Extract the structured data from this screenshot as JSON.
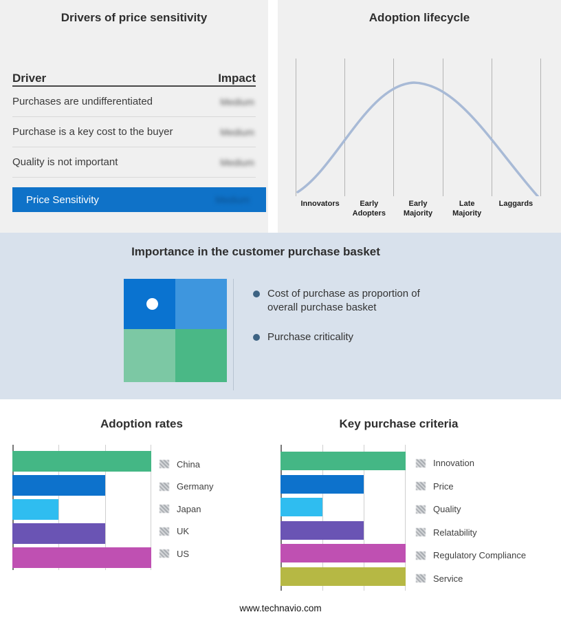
{
  "page": {
    "footer_url": "www.technavio.com",
    "band_bg": "#d8e1ec",
    "panel_bg": "#f0f0f0"
  },
  "drivers_panel": {
    "title": "Drivers of price sensitivity",
    "header": {
      "driver": "Driver",
      "impact": "Impact"
    },
    "rows": [
      {
        "driver": "Purchases are undifferentiated",
        "impact": "Medium",
        "impact_obscured": true
      },
      {
        "driver": "Purchase is a key cost to the buyer",
        "impact": "Medium",
        "impact_obscured": true
      },
      {
        "driver": "Quality is not important",
        "impact": "Medium",
        "impact_obscured": true
      }
    ],
    "highlight": {
      "label": "Price Sensitivity",
      "impact": "Medium",
      "impact_obscured": true,
      "bg": "#0f72c8",
      "text_color": "#ffffff"
    }
  },
  "lifecycle_panel": {
    "title": "Adoption lifecycle"
  },
  "basket_band": {
    "title": "Importance in the customer purchase basket",
    "bullets": [
      "Cost of purchase as proportion of overall purchase basket",
      "Purchase criticality"
    ],
    "bullet_color": "#3d6383",
    "quadrant": {
      "top_left": "#0a73d0",
      "top_right": "#3e96de",
      "bottom_left": "#7cc8a4",
      "bottom_right": "#4ab886",
      "dot_color": "#ffffff"
    }
  },
  "chart_data": [
    {
      "type": "line",
      "title": "Adoption lifecycle",
      "categories": [
        "Innovators",
        "Early Adopters",
        "Early Majority",
        "Late Majority",
        "Laggards"
      ],
      "shape": "bell adoption curve rising from Innovators, peaking at Early Majority, falling to Laggards",
      "color": "#a8bad6",
      "grid": "vertical category separator lines, no y-axis labels"
    },
    {
      "type": "bar",
      "orientation": "horizontal",
      "title": "Adoption rates",
      "categories": [
        "China",
        "Germany",
        "Japan",
        "UK",
        "US"
      ],
      "values": [
        3,
        2,
        1,
        2,
        3
      ],
      "xlim": [
        0,
        3
      ],
      "note": "axis unlabeled; relative lengths estimated from gridlines; legend values blurred in source",
      "colors": [
        "#44b785",
        "#0d72cc",
        "#2fbdf0",
        "#6a54b4",
        "#bf50b2"
      ],
      "grid": true,
      "legend_position": "right",
      "legend_values_obscured": true
    },
    {
      "type": "bar",
      "orientation": "horizontal",
      "title": "Key purchase criteria",
      "categories": [
        "Innovation",
        "Price",
        "Quality",
        "Relatability",
        "Regulatory Compliance",
        "Service"
      ],
      "values": [
        3,
        2,
        1,
        2,
        3,
        3
      ],
      "xlim": [
        0,
        3
      ],
      "note": "axis unlabeled; relative lengths estimated from gridlines; legend values blurred in source",
      "colors": [
        "#44b785",
        "#0d72cc",
        "#2fbdf0",
        "#6a54b4",
        "#bf50b2",
        "#b6b844"
      ],
      "grid": true,
      "legend_position": "right",
      "legend_values_obscured": true
    }
  ]
}
